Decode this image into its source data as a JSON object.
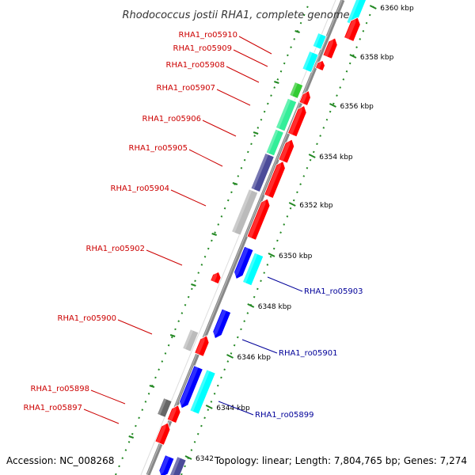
{
  "title": "Rhodococcus jostii RHA1, complete genome",
  "footer": {
    "accession": "Accession: NC_008268",
    "summary": "Topology: linear; Length: 7,804,765 bp; Genes: 7,274"
  },
  "ticks": [
    "6342",
    "6344 kbp",
    "6346 kbp",
    "6348 kbp",
    "6350 kbp",
    "6352 kbp",
    "6354 kbp",
    "6356 kbp",
    "6358 kbp",
    "6360 kbp"
  ],
  "genes_left": [
    "RHA1_ro05910",
    "RHA1_ro05909",
    "RHA1_ro05908",
    "RHA1_ro05907",
    "RHA1_ro05906",
    "RHA1_ro05905",
    "RHA1_ro05904",
    "RHA1_ro05902",
    "RHA1_ro05900",
    "RHA1_ro05898",
    "RHA1_ro05897"
  ],
  "genes_right": [
    "RHA1_ro05903",
    "RHA1_ro05901",
    "RHA1_ro05899"
  ],
  "colors": {
    "forward_gene": "#ff0000",
    "reverse_gene": "#0000ff",
    "cyan_gene": "#00ffff",
    "green_gene": "#33ee99",
    "lime_gene": "#33cc33",
    "purple_gene": "#4b4b99",
    "grey_gene": "#bbbbbb",
    "dark_gene": "#666666",
    "backbone": "#888888",
    "tick": "#228822",
    "label_left": "#cc0000",
    "label_right": "#000099"
  }
}
